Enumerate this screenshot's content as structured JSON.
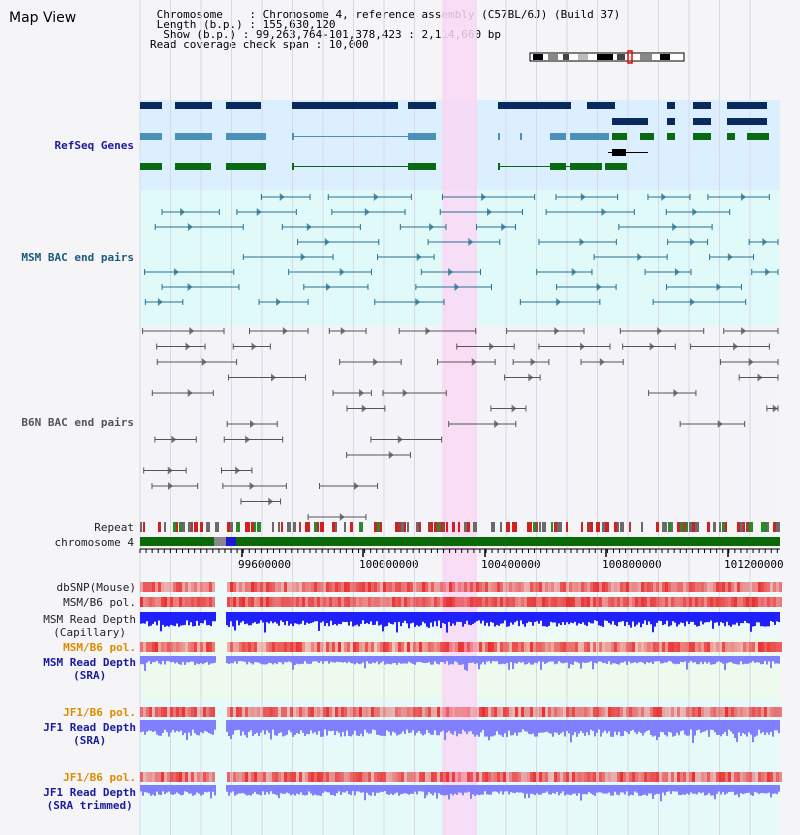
{
  "app": {
    "title": "Map View"
  },
  "header": {
    "chromosome_label": "Chromosome",
    "chromosome_value": "Chromosome 4, reference assembly (C57BL/6J) (Build 37)",
    "length_label": "Length (b.p.)",
    "length_value": "155,630,120",
    "show_label": "Show (b.p.)",
    "show_value": "99,263,764-101,378,423 : 2,114,660 bp",
    "coverage_label": "Read coverage check span",
    "coverage_value": "10,000"
  },
  "tracks": {
    "refseq": "RefSeq Genes",
    "msm_bac": "MSM BAC end pairs",
    "b6n_bac": "B6N BAC end pairs",
    "repeat": "Repeat",
    "chromosome": "chromosome 4",
    "dbsnp": "dbSNP(Mouse)",
    "msm_b6_pol": "MSM/B6 pol.",
    "msm_depth_cap_1": "MSM Read Depth",
    "msm_depth_cap_2": "(Capillary)",
    "msm_b6_pol_sra": "MSM/B6 pol.",
    "msm_depth_sra_1": "MSM Read Depth",
    "msm_depth_sra_2": "(SRA)",
    "jf1_b6_pol": "JF1/B6 pol.",
    "jf1_depth_sra_1": "JF1 Read Depth",
    "jf1_depth_sra_2": "(SRA)",
    "jf1_b6_pol_trim": "JF1/B6 pol.",
    "jf1_depth_trim_1": "JF1 Read Depth",
    "jf1_depth_trim_2": "(SRA trimmed)"
  },
  "axis": {
    "ticks": [
      "99600000",
      "100000000",
      "100400000",
      "100800000",
      "101200000"
    ]
  },
  "colors": {
    "refseq_bg": "#dcefff",
    "highlight": "#f8d8f4",
    "gene_dark": "#0a2a5e",
    "gene_mid": "#4a90b8",
    "gene_green": "#0a6a14",
    "msm_bac": "#2a7090",
    "b6n_bac": "#555555",
    "snp_red": "#f08080",
    "depth_blue": "#2020ff",
    "depth_light": "#8080ff",
    "label_blue": "#1a1aa0",
    "label_orange": "#e08a00"
  }
}
